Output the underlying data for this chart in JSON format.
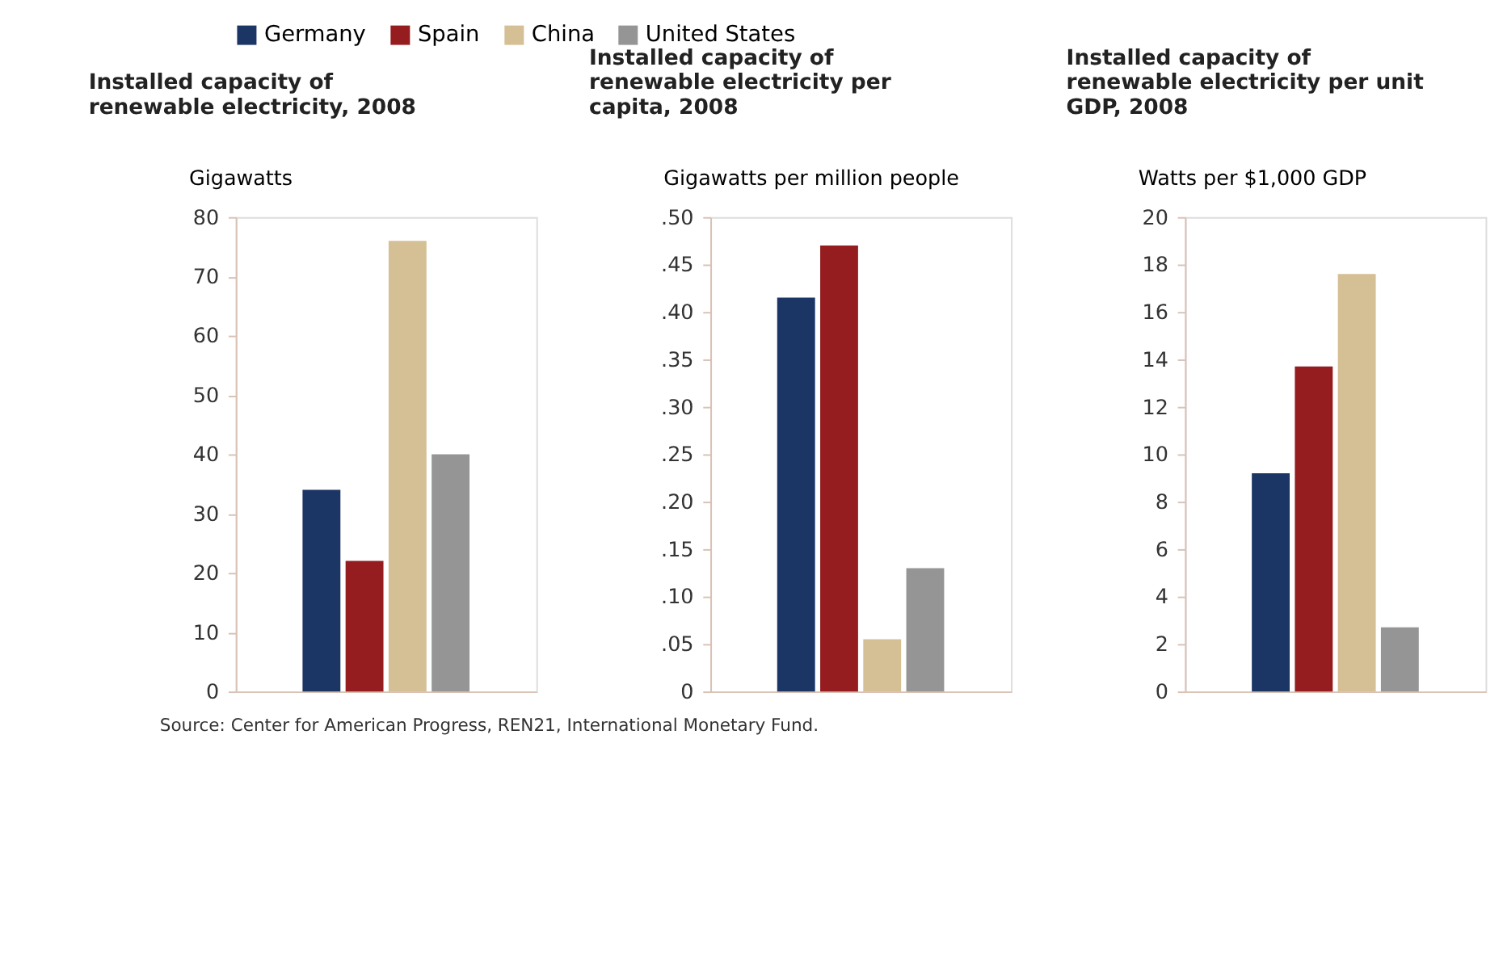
{
  "chart_data": [
    {
      "type": "bar",
      "title": "Installed capacity of renewable electricity, 2008",
      "ylabel": "Gigawatts",
      "categories": [
        null
      ],
      "series": [
        {
          "name": "Germany",
          "color": "#1b3564",
          "values": [
            34
          ]
        },
        {
          "name": "Spain",
          "color": "#951c1f",
          "values": [
            22
          ]
        },
        {
          "name": "China",
          "color": "#d5bf94",
          "values": [
            76
          ]
        },
        {
          "name": "United States",
          "color": "#959595",
          "values": [
            40
          ]
        }
      ],
      "ylim": [
        0,
        80
      ],
      "yticks": [
        0,
        10,
        20,
        30,
        40,
        50,
        60,
        70,
        80
      ],
      "grid": false,
      "legend": "top",
      "tick_labels": "y",
      "annotations": [
        "Source: Center for American Progress, REN21, International Monetary Fund."
      ]
    },
    {
      "type": "bar",
      "title": "Installed capacity of renewable electricity per capita, 2008",
      "ylabel": "Gigawatts per million people",
      "categories": [
        null
      ],
      "series": [
        {
          "name": "Germany",
          "color": "#1b3564",
          "values": [
            0.415
          ]
        },
        {
          "name": "Spain",
          "color": "#951c1f",
          "values": [
            0.47
          ]
        },
        {
          "name": "China",
          "color": "#d5bf94",
          "values": [
            0.055
          ]
        },
        {
          "name": "United States",
          "color": "#959595",
          "values": [
            0.13
          ]
        }
      ],
      "ylim": [
        0,
        0.5
      ],
      "yticks": [
        {
          "value": 0,
          "label": "0"
        },
        {
          "value": 0.05,
          "label": ".05"
        },
        {
          "value": 0.1,
          "label": ".10"
        },
        {
          "value": 0.15,
          "label": ".15"
        },
        {
          "value": 0.2,
          "label": ".20"
        },
        {
          "value": 0.25,
          "label": ".25"
        },
        {
          "value": 0.3,
          "label": ".30"
        },
        {
          "value": 0.35,
          "label": ".35"
        },
        {
          "value": 0.4,
          "label": ".40"
        },
        {
          "value": 0.45,
          "label": ".45"
        },
        {
          "value": 0.5,
          "label": ".50"
        }
      ],
      "grid": false,
      "tick_labels": "y"
    },
    {
      "type": "bar",
      "title": "Installed capacity of renewable electricity per unit GDP, 2008",
      "ylabel": "Watts per $1,000 GDP",
      "categories": [
        null
      ],
      "series": [
        {
          "name": "Germany",
          "color": "#1b3564",
          "values": [
            9.2
          ]
        },
        {
          "name": "Spain",
          "color": "#951c1f",
          "values": [
            13.7
          ]
        },
        {
          "name": "China",
          "color": "#d5bf94",
          "values": [
            17.6
          ]
        },
        {
          "name": "United States",
          "color": "#959595",
          "values": [
            2.7
          ]
        }
      ],
      "ylim": [
        0,
        20
      ],
      "yticks": [
        0,
        2,
        4,
        6,
        8,
        10,
        12,
        14,
        16,
        18,
        20
      ],
      "grid": false,
      "tick_labels": "y"
    }
  ]
}
